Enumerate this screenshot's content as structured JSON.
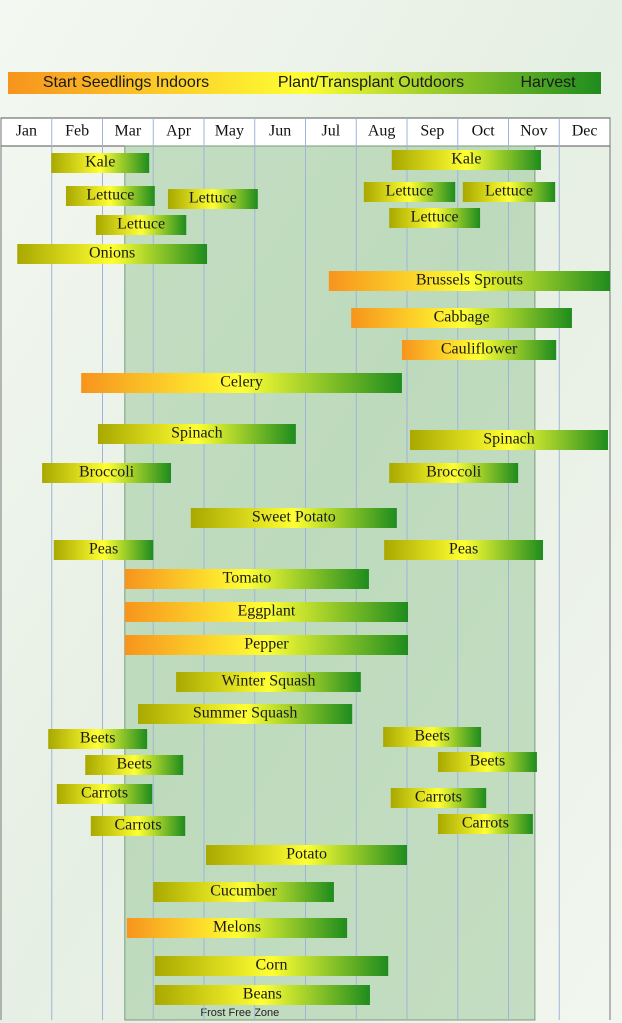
{
  "chart_data": {
    "type": "timeline",
    "legend": [
      "Start Seedlings Indoors",
      "Plant/Transplant Outdoors",
      "Harvest"
    ],
    "legend_colors": [
      "#f7941d",
      "#ffff33",
      "#1e8c1e"
    ],
    "categories": [
      "Jan",
      "Feb",
      "Mar",
      "Apr",
      "May",
      "Jun",
      "Jul",
      "Aug",
      "Sep",
      "Oct",
      "Nov",
      "Dec"
    ],
    "xlim": [
      0,
      12
    ],
    "frost_free": {
      "label": "Frost Free Zone",
      "start": 2.44,
      "end": 10.52,
      "color": "#8fc08f"
    },
    "bars": [
      {
        "label": "Kale",
        "start": 0.99,
        "end": 2.92,
        "colors": [
          "#a8a800",
          "#ffff33",
          "#1e8c1e"
        ]
      },
      {
        "label": "Kale",
        "start": 7.7,
        "end": 10.64,
        "colors": [
          "#a8a800",
          "#ffff33",
          "#1e8c1e"
        ]
      },
      {
        "label": "Lettuce",
        "start": 1.28,
        "end": 3.03,
        "colors": [
          "#a8a800",
          "#ffff33",
          "#1e8c1e"
        ]
      },
      {
        "label": "Lettuce",
        "start": 3.29,
        "end": 5.06,
        "colors": [
          "#a8a800",
          "#ffff33",
          "#1e8c1e"
        ]
      },
      {
        "label": "Lettuce",
        "start": 1.87,
        "end": 3.65,
        "colors": [
          "#a8a800",
          "#ffff33",
          "#1e8c1e"
        ]
      },
      {
        "label": "Lettuce",
        "start": 7.15,
        "end": 8.95,
        "colors": [
          "#a8a800",
          "#ffff33",
          "#1e8c1e"
        ]
      },
      {
        "label": "Lettuce",
        "start": 9.1,
        "end": 10.92,
        "colors": [
          "#a8a800",
          "#ffff33",
          "#1e8c1e"
        ]
      },
      {
        "label": "Lettuce",
        "start": 7.65,
        "end": 9.44,
        "colors": [
          "#a8a800",
          "#ffff33",
          "#1e8c1e"
        ]
      },
      {
        "label": "Onions",
        "start": 0.32,
        "end": 4.06,
        "colors": [
          "#a8a800",
          "#ffff33",
          "#1e8c1e"
        ]
      },
      {
        "label": "Brussels Sprouts",
        "start": 6.46,
        "end": 12.0,
        "colors": [
          "#f7941d",
          "#ffff33",
          "#1e8c1e"
        ]
      },
      {
        "label": "Cabbage",
        "start": 6.9,
        "end": 11.25,
        "colors": [
          "#f7941d",
          "#ffff33",
          "#1e8c1e"
        ]
      },
      {
        "label": "Cauliflower",
        "start": 7.9,
        "end": 10.94,
        "colors": [
          "#f7941d",
          "#ffff33",
          "#1e8c1e"
        ]
      },
      {
        "label": "Celery",
        "start": 1.58,
        "end": 7.9,
        "colors": [
          "#f7941d",
          "#ffff33",
          "#1e8c1e"
        ]
      },
      {
        "label": "Spinach",
        "start": 1.91,
        "end": 5.81,
        "colors": [
          "#a8a800",
          "#ffff33",
          "#1e8c1e"
        ]
      },
      {
        "label": "Spinach",
        "start": 8.06,
        "end": 11.96,
        "colors": [
          "#a8a800",
          "#ffff33",
          "#1e8c1e"
        ]
      },
      {
        "label": "Broccoli",
        "start": 0.81,
        "end": 3.35,
        "colors": [
          "#a8a800",
          "#ffff33",
          "#1e8c1e"
        ]
      },
      {
        "label": "Broccoli",
        "start": 7.65,
        "end": 10.19,
        "colors": [
          "#a8a800",
          "#ffff33",
          "#1e8c1e"
        ]
      },
      {
        "label": "Sweet Potato",
        "start": 3.74,
        "end": 7.8,
        "colors": [
          "#a8a800",
          "#ffff33",
          "#1e8c1e"
        ]
      },
      {
        "label": "Peas",
        "start": 1.04,
        "end": 3.0,
        "colors": [
          "#a8a800",
          "#ffff33",
          "#1e8c1e"
        ]
      },
      {
        "label": "Peas",
        "start": 7.55,
        "end": 10.68,
        "colors": [
          "#a8a800",
          "#ffff33",
          "#1e8c1e"
        ]
      },
      {
        "label": "Tomato",
        "start": 2.44,
        "end": 7.25,
        "colors": [
          "#f7941d",
          "#ffff33",
          "#1e8c1e"
        ]
      },
      {
        "label": "Eggplant",
        "start": 2.44,
        "end": 8.02,
        "colors": [
          "#f7941d",
          "#ffff33",
          "#1e8c1e"
        ]
      },
      {
        "label": "Pepper",
        "start": 2.44,
        "end": 8.02,
        "colors": [
          "#f7941d",
          "#ffff33",
          "#1e8c1e"
        ]
      },
      {
        "label": "Winter Squash",
        "start": 3.45,
        "end": 7.09,
        "colors": [
          "#a8a800",
          "#ffff33",
          "#1e8c1e"
        ]
      },
      {
        "label": "Summer Squash",
        "start": 2.7,
        "end": 6.92,
        "colors": [
          "#a8a800",
          "#ffff33",
          "#1e8c1e"
        ]
      },
      {
        "label": "Beets",
        "start": 0.93,
        "end": 2.88,
        "colors": [
          "#a8a800",
          "#ffff33",
          "#1e8c1e"
        ]
      },
      {
        "label": "Beets",
        "start": 1.66,
        "end": 3.59,
        "colors": [
          "#a8a800",
          "#ffff33",
          "#1e8c1e"
        ]
      },
      {
        "label": "Beets",
        "start": 7.53,
        "end": 9.46,
        "colors": [
          "#a8a800",
          "#ffff33",
          "#1e8c1e"
        ]
      },
      {
        "label": "Beets",
        "start": 8.61,
        "end": 10.56,
        "colors": [
          "#a8a800",
          "#ffff33",
          "#1e8c1e"
        ]
      },
      {
        "label": "Carrots",
        "start": 1.1,
        "end": 2.98,
        "colors": [
          "#a8a800",
          "#ffff33",
          "#1e8c1e"
        ]
      },
      {
        "label": "Carrots",
        "start": 1.77,
        "end": 3.63,
        "colors": [
          "#a8a800",
          "#ffff33",
          "#1e8c1e"
        ]
      },
      {
        "label": "Carrots",
        "start": 7.68,
        "end": 9.56,
        "colors": [
          "#a8a800",
          "#ffff33",
          "#1e8c1e"
        ]
      },
      {
        "label": "Carrots",
        "start": 8.61,
        "end": 10.48,
        "colors": [
          "#a8a800",
          "#ffff33",
          "#1e8c1e"
        ]
      },
      {
        "label": "Potato",
        "start": 4.04,
        "end": 8.0,
        "colors": [
          "#a8a800",
          "#ffff33",
          "#1e8c1e"
        ]
      },
      {
        "label": "Cucumber",
        "start": 3.0,
        "end": 6.56,
        "colors": [
          "#a8a800",
          "#ffff33",
          "#1e8c1e"
        ]
      },
      {
        "label": "Melons",
        "start": 2.48,
        "end": 6.82,
        "colors": [
          "#f7941d",
          "#ffff33",
          "#1e8c1e"
        ]
      },
      {
        "label": "Corn",
        "start": 3.03,
        "end": 7.63,
        "colors": [
          "#a8a800",
          "#ffff33",
          "#1e8c1e"
        ]
      },
      {
        "label": "Beans",
        "start": 3.03,
        "end": 7.27,
        "colors": [
          "#a8a800",
          "#ffff33",
          "#1e8c1e"
        ]
      }
    ]
  }
}
